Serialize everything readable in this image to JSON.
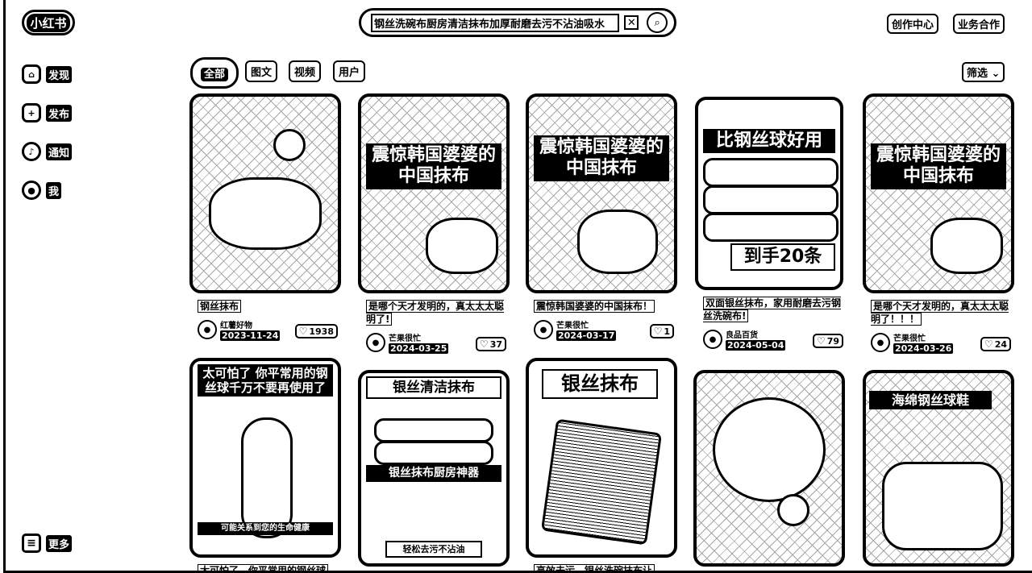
{
  "header": {
    "logo": "小红书",
    "search_value": "钢丝洗碗布厨房清洁抹布加厚耐磨去污不沾油吸水",
    "links": [
      "创作中心",
      "业务合作"
    ]
  },
  "sidebar": {
    "items": [
      {
        "label": "发现",
        "icon": "home-icon"
      },
      {
        "label": "发布",
        "icon": "publish-icon"
      },
      {
        "label": "通知",
        "icon": "bell-icon"
      },
      {
        "label": "我",
        "icon": "profile-icon"
      }
    ],
    "more": "更多"
  },
  "tabs": [
    {
      "label": "全部",
      "active": true
    },
    {
      "label": "图文",
      "active": false
    },
    {
      "label": "视频",
      "active": false
    },
    {
      "label": "用户",
      "active": false
    }
  ],
  "filter_label": "筛选",
  "cards": [
    {
      "cover_text": "",
      "title": "钢丝抹布",
      "author": "红薯好物",
      "date": "2023-11-24",
      "likes": "1938"
    },
    {
      "cover_text": "震惊韩国婆婆的中国抹布",
      "title": "是哪个天才发明的，真太太太聪明了!",
      "author": "芒果很忙",
      "date": "2024-03-25",
      "likes": "37"
    },
    {
      "cover_text": "震惊韩国婆婆的中国抹布",
      "title": "震惊韩国婆婆的中国抹布！",
      "author": "芒果很忙",
      "date": "2024-03-17",
      "likes": "1"
    },
    {
      "cover_text": "比钢丝球好用",
      "cover_text_2": "到手20条",
      "title": "双面银丝抹布，家用耐磨去污钢丝洗碗布!",
      "author": "良品百货",
      "date": "2024-05-04",
      "likes": "79"
    },
    {
      "cover_text": "震惊韩国婆婆的中国抹布",
      "title": "是哪个天才发明的，真太太太聪明了！！！",
      "author": "芒果很忙",
      "date": "2024-03-26",
      "likes": "24"
    },
    {
      "cover_text": "太可怕了 你平常用的钢丝球千万不要再使用了",
      "cover_text_2": "可能关系到您的生命健康",
      "title": "太可怕了，你平常用的钢丝球",
      "author": "",
      "date": "",
      "likes": ""
    },
    {
      "cover_text": "银丝清洁抹布",
      "cover_text_2": "银丝抹布厨房神器",
      "cover_text_3": "轻松去污不沾油",
      "title": "",
      "author": "",
      "date": "",
      "likes": ""
    },
    {
      "cover_text": "银丝抹布",
      "title": "高效去污，银丝洗碗抹布让",
      "author": "",
      "date": "",
      "likes": ""
    },
    {
      "cover_text": "",
      "title": "",
      "author": "",
      "date": "",
      "likes": ""
    },
    {
      "cover_text": "海绵钢丝球鞋",
      "title": "",
      "author": "",
      "date": "",
      "likes": ""
    }
  ]
}
